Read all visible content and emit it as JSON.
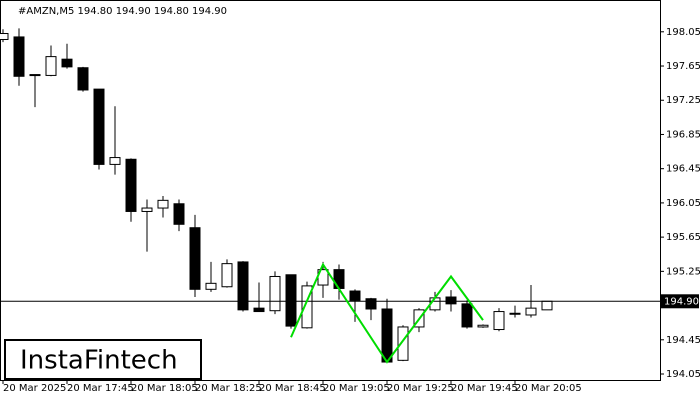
{
  "chart_data": {
    "type": "candlestick",
    "title": "#AMZN,M5  194.80 194.90 194.80 194.90",
    "watermark": "InstaFintech",
    "categories": [
      "20 Mar 2025",
      null,
      null,
      null,
      "20 Mar 17:45",
      null,
      null,
      null,
      "20 Mar 18:05",
      null,
      null,
      null,
      "20 Mar 18:25",
      null,
      null,
      null,
      "20 Mar 18:45",
      null,
      null,
      null,
      "20 Mar 19:05",
      null,
      null,
      null,
      "20 Mar 19:25",
      null,
      null,
      null,
      "20 Mar 19:45",
      null,
      null,
      null,
      "20 Mar 20:05",
      null,
      null
    ],
    "open": [
      197.96,
      197.99,
      197.54,
      197.54,
      197.73,
      197.63,
      197.38,
      196.5,
      196.56,
      195.95,
      195.99,
      196.04,
      195.76,
      195.04,
      195.07,
      195.36,
      194.82,
      194.79,
      195.21,
      194.59,
      195.09,
      195.27,
      195.02,
      194.93,
      194.81,
      194.21,
      194.6,
      194.8,
      194.95,
      194.87,
      194.6,
      194.57,
      194.75,
      194.74,
      194.8
    ],
    "high": [
      198.08,
      198.09,
      197.55,
      197.89,
      197.91,
      197.64,
      197.38,
      197.18,
      196.57,
      196.09,
      196.13,
      196.09,
      195.91,
      195.36,
      195.39,
      195.37,
      195.12,
      195.25,
      195.21,
      195.13,
      195.36,
      195.33,
      195.04,
      194.94,
      194.93,
      194.62,
      194.82,
      195.01,
      195.03,
      194.91,
      194.63,
      194.82,
      194.85,
      195.09,
      194.9
    ],
    "low": [
      197.93,
      197.42,
      197.17,
      197.53,
      197.62,
      197.35,
      196.44,
      196.38,
      195.83,
      195.48,
      195.88,
      195.72,
      194.95,
      195.01,
      195.06,
      194.78,
      194.78,
      194.75,
      194.58,
      194.58,
      194.94,
      194.92,
      194.66,
      194.68,
      194.18,
      194.2,
      194.54,
      194.78,
      194.78,
      194.58,
      194.59,
      194.55,
      194.71,
      194.71,
      194.8
    ],
    "close": [
      198.03,
      197.53,
      197.55,
      197.76,
      197.64,
      197.37,
      196.5,
      196.58,
      195.95,
      195.99,
      196.08,
      195.8,
      195.04,
      195.11,
      195.34,
      194.8,
      194.78,
      195.19,
      194.61,
      195.08,
      195.27,
      195.05,
      194.91,
      194.81,
      194.19,
      194.6,
      194.8,
      194.94,
      194.87,
      194.6,
      194.62,
      194.78,
      194.76,
      194.82,
      194.9
    ],
    "up_color": "#ffffff",
    "down_color": "#000000",
    "pattern": {
      "color": "#00dd00",
      "x": [
        18,
        20,
        24,
        28,
        30
      ],
      "values": [
        194.48,
        195.33,
        194.19,
        195.19,
        194.68
      ]
    },
    "price_line": {
      "value": 194.9,
      "label": "194.90"
    },
    "ylim": [
      193.98,
      198.41
    ],
    "yticks": [
      198.05,
      197.65,
      197.25,
      196.85,
      196.45,
      196.05,
      195.65,
      195.25,
      194.45,
      194.05
    ]
  }
}
